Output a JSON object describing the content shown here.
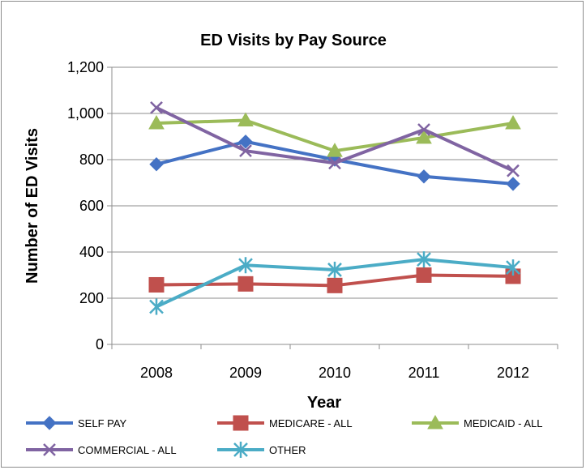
{
  "chart_data": {
    "type": "line",
    "title": "ED Visits by Pay Source",
    "xlabel": "Year",
    "ylabel": "Number of ED Visits",
    "categories": [
      "2008",
      "2009",
      "2010",
      "2011",
      "2012"
    ],
    "ylim": [
      0,
      1200
    ],
    "yticks": [
      "0",
      "200",
      "400",
      "600",
      "800",
      "1,000",
      "1,200"
    ],
    "ytick_values": [
      0,
      200,
      400,
      600,
      800,
      1000,
      1200
    ],
    "grid": "horizontal",
    "legend_position": "bottom",
    "series": [
      {
        "name": "SELF PAY",
        "values": [
          780,
          878,
          800,
          727,
          695
        ],
        "color": "#4472C4",
        "marker": "diamond"
      },
      {
        "name": "MEDICARE - ALL",
        "values": [
          258,
          262,
          255,
          300,
          295
        ],
        "color": "#C0504D",
        "marker": "square"
      },
      {
        "name": "MEDICAID - ALL",
        "values": [
          958,
          970,
          838,
          895,
          958
        ],
        "color": "#9BBB59",
        "marker": "triangle"
      },
      {
        "name": "COMMERCIAL - ALL",
        "values": [
          1025,
          838,
          785,
          930,
          752
        ],
        "color": "#8064A2",
        "marker": "x"
      },
      {
        "name": "OTHER",
        "values": [
          163,
          343,
          323,
          368,
          333
        ],
        "color": "#4BACC6",
        "marker": "star"
      }
    ]
  }
}
